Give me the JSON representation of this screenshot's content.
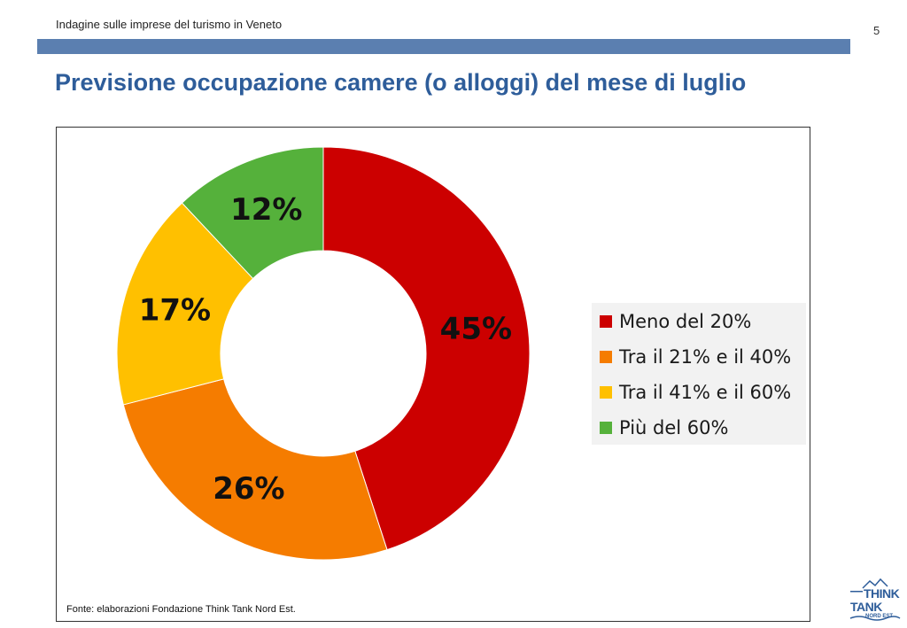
{
  "header": {
    "subtitle": "Indagine sulle imprese del turismo in Veneto",
    "page_number": "5",
    "bar_color": "#5b7fb0"
  },
  "title": "Previsione occupazione camere (o alloggi) del mese di luglio",
  "source_note": "Fonte: elaborazioni Fondazione Think Tank Nord Est.",
  "logo": {
    "line1": "THINK",
    "line2": "TANK",
    "line3": "NORD EST"
  },
  "chart_data": {
    "type": "pie",
    "variant": "donut",
    "title": "",
    "categories": [
      "Meno del 20%",
      "Tra il 21% e il 40%",
      "Tra il 41% e il 60%",
      "Più del 60%"
    ],
    "values": [
      45,
      26,
      17,
      12
    ],
    "labels": [
      "45%",
      "26%",
      "17%",
      "12%"
    ],
    "colors": [
      "#cc0000",
      "#f57c00",
      "#ffc000",
      "#55b13b"
    ],
    "legend_position": "right"
  }
}
